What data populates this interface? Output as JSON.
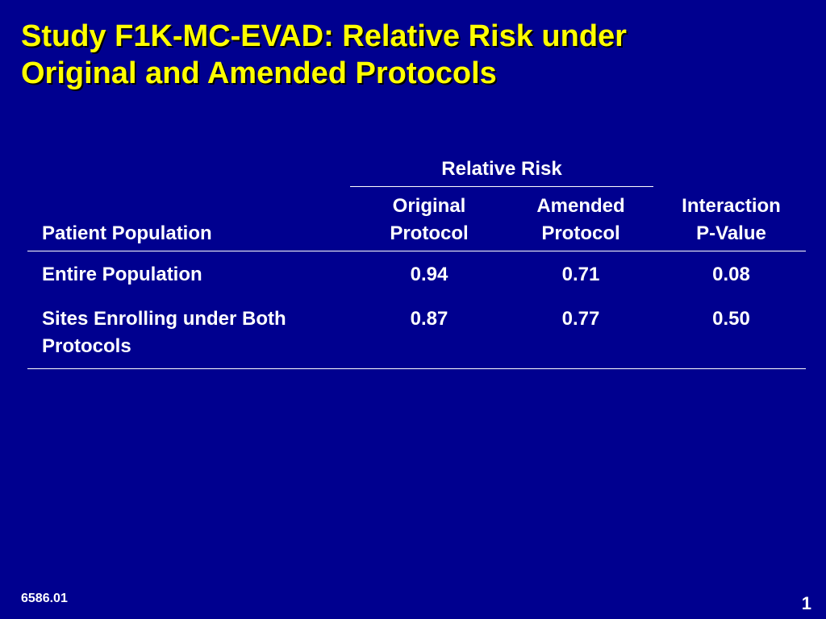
{
  "slide": {
    "title_line1": "Study F1K-MC-EVAD: Relative Risk under",
    "title_line2": "Original and Amended Protocols",
    "colors": {
      "background": "#00008f",
      "title": "#ffff00",
      "text": "#ffffff"
    }
  },
  "table": {
    "group_header": "Relative Risk",
    "headers": {
      "population": "Patient Population",
      "original_line1": "Original",
      "original_line2": "Protocol",
      "amended_line1": "Amended",
      "amended_line2": "Protocol",
      "interaction_line1": "Interaction",
      "interaction_line2": "P-Value"
    },
    "rows": [
      {
        "population": "Entire Population",
        "original": "0.94",
        "amended": "0.71",
        "interaction": "0.08"
      },
      {
        "population": "Sites Enrolling under Both Protocols",
        "original": "0.87",
        "amended": "0.77",
        "interaction": "0.50"
      }
    ]
  },
  "footer": {
    "code": "6586.01",
    "page_number": "1"
  }
}
